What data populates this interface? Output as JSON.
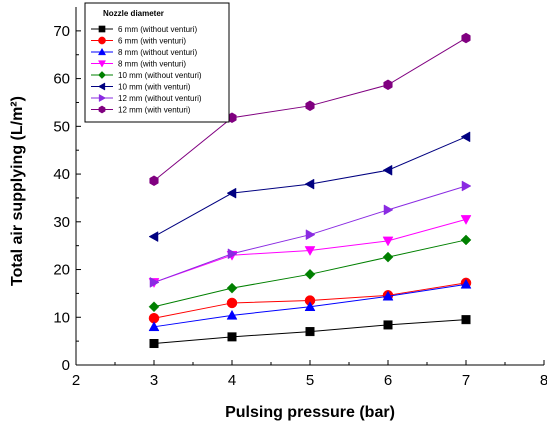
{
  "chart_data": {
    "type": "line",
    "title": "",
    "xlabel": "Pulsing pressure (bar)",
    "ylabel": "Total air supplying (L/m²)",
    "xlim": [
      2,
      8
    ],
    "ylim": [
      0,
      75
    ],
    "xticks": [
      2,
      3,
      4,
      5,
      6,
      7,
      8
    ],
    "yticks": [
      0,
      10,
      20,
      30,
      40,
      50,
      60,
      70
    ],
    "grid": false,
    "legend": {
      "title": "Nozzle diameter",
      "placement": "top-left"
    },
    "x": [
      3,
      4,
      5,
      6,
      7
    ],
    "series": [
      {
        "name": "6 mm (without venturi)",
        "marker": "square",
        "color": "#000000",
        "values": [
          4.5,
          5.9,
          7.0,
          8.4,
          9.5
        ]
      },
      {
        "name": "6 mm (with venturi)",
        "marker": "circle",
        "color": "#ff0000",
        "values": [
          9.8,
          13.0,
          13.5,
          14.6,
          17.2
        ]
      },
      {
        "name": "8 mm (without venturi)",
        "marker": "triangle-up",
        "color": "#0000ff",
        "values": [
          8.0,
          10.4,
          12.2,
          14.4,
          16.9
        ]
      },
      {
        "name": "8 mm (with venturi)",
        "marker": "triangle-down",
        "color": "#ff00ff",
        "values": [
          17.3,
          23.0,
          24.0,
          26.0,
          30.5
        ]
      },
      {
        "name": "10 mm (without venturi)",
        "marker": "diamond",
        "color": "#008000",
        "values": [
          12.2,
          16.1,
          19.0,
          22.6,
          26.2
        ]
      },
      {
        "name": "10 mm (with venturi)",
        "marker": "triangle-left",
        "color": "#000080",
        "values": [
          26.9,
          36.0,
          37.9,
          40.8,
          47.8
        ]
      },
      {
        "name": "12 mm (without venturi)",
        "marker": "triangle-right",
        "color": "#8a2be2",
        "values": [
          17.3,
          23.3,
          27.3,
          32.5,
          37.5
        ]
      },
      {
        "name": "12 mm (with venturi)",
        "marker": "hexagon",
        "color": "#800080",
        "values": [
          38.6,
          51.8,
          54.3,
          58.7,
          68.5
        ]
      }
    ]
  }
}
